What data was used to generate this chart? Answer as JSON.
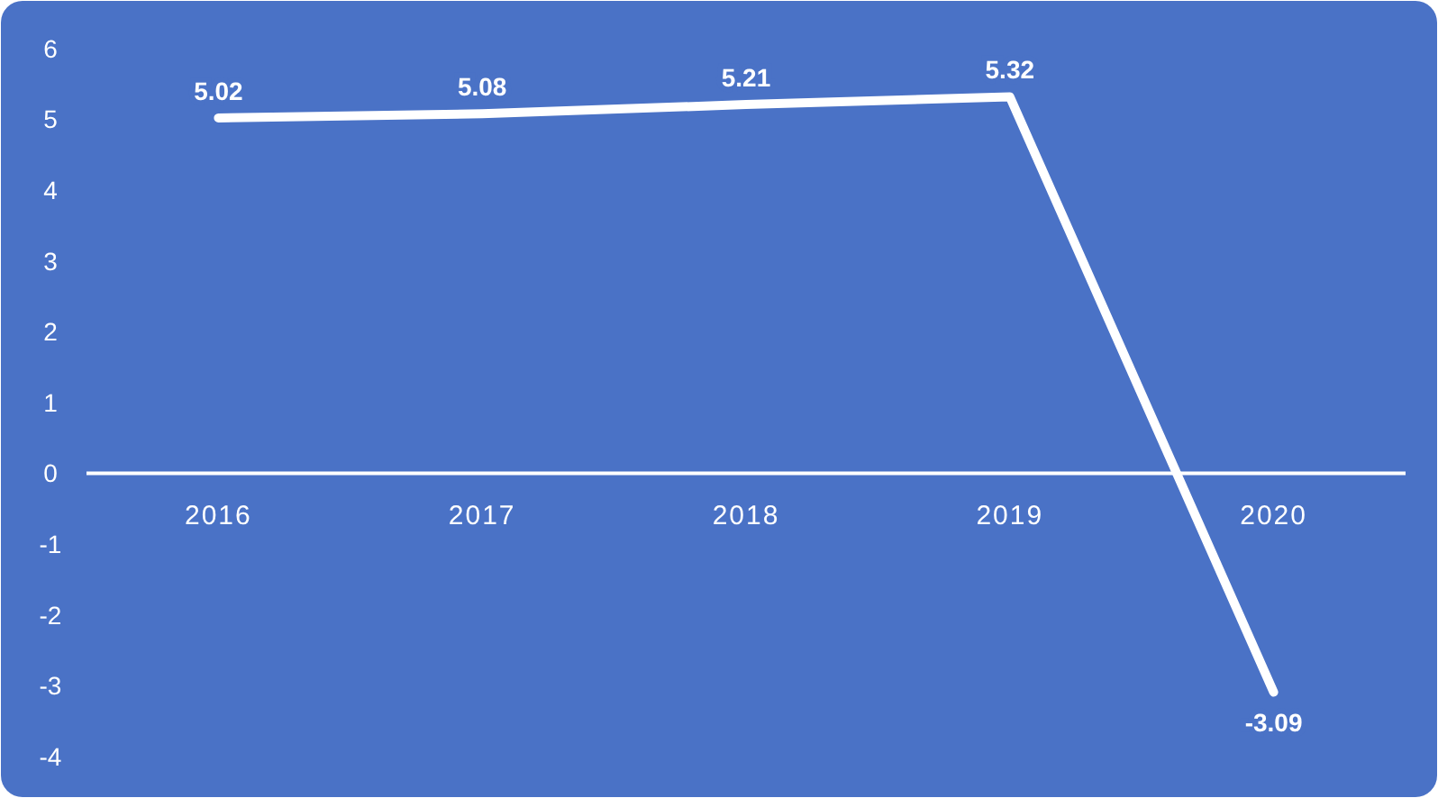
{
  "chart_data": {
    "type": "line",
    "categories": [
      "2016",
      "2017",
      "2018",
      "2019",
      "2020"
    ],
    "series": [
      {
        "color": "#ffffff",
        "values": [
          5.02,
          5.08,
          5.21,
          5.32,
          -3.09
        ]
      }
    ],
    "ylim": [
      -4,
      6
    ],
    "yticks": [
      -4,
      -3,
      -2,
      -1,
      0,
      1,
      2,
      3,
      4,
      5,
      6
    ],
    "grid": false,
    "marker": "none",
    "line_style": "solid",
    "data_labels": true
  }
}
